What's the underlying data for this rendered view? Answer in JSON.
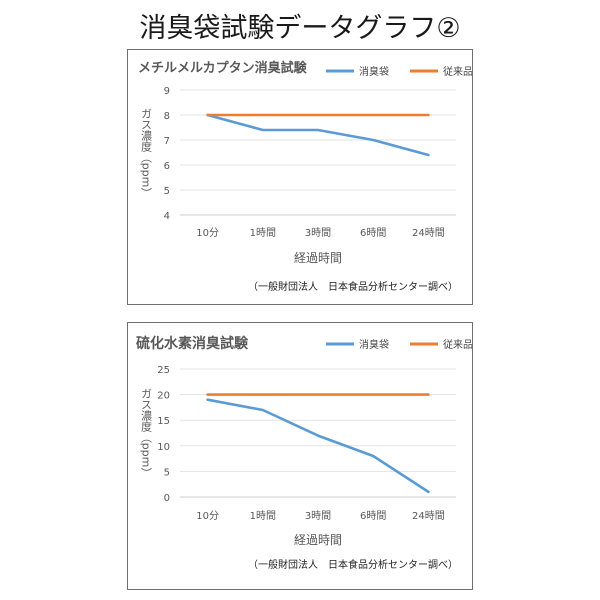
{
  "page_title": "消臭袋試験データグラフ②",
  "chart_data": [
    {
      "type": "line",
      "title": "メチルメルカプタン消臭試験",
      "categories": [
        "10分",
        "1時間",
        "3時間",
        "6時間",
        "24時間"
      ],
      "series": [
        {
          "name": "消臭袋",
          "values": [
            8.0,
            7.4,
            7.4,
            7.0,
            6.4
          ],
          "color": "#5b9bd5"
        },
        {
          "name": "従来品",
          "values": [
            8.0,
            8.0,
            8.0,
            8.0,
            8.0
          ],
          "color": "#ed7d31"
        }
      ],
      "xlabel": "経過時間",
      "ylabel": "ガス濃度（ppm）",
      "ylim": [
        4,
        9
      ],
      "yticks": [
        "4",
        "5",
        "6",
        "7",
        "8",
        "9"
      ],
      "grid": true,
      "legend": "top-right",
      "source": "（一般財団法人　日本食品分析センター調べ）"
    },
    {
      "type": "line",
      "title": "硫化水素消臭試験",
      "categories": [
        "10分",
        "1時間",
        "3時間",
        "6時間",
        "24時間"
      ],
      "series": [
        {
          "name": "消臭袋",
          "values": [
            19,
            17,
            12,
            8,
            1
          ],
          "color": "#5b9bd5"
        },
        {
          "name": "従来品",
          "values": [
            20,
            20,
            20,
            20,
            20
          ],
          "color": "#ed7d31"
        }
      ],
      "xlabel": "経過時間",
      "ylabel": "ガス濃度（ppm）",
      "ylim": [
        0,
        25
      ],
      "yticks": [
        "0",
        "5",
        "10",
        "15",
        "20",
        "25"
      ],
      "grid": true,
      "legend": "top-right",
      "source": "（一般財団法人　日本食品分析センター調べ）"
    }
  ]
}
